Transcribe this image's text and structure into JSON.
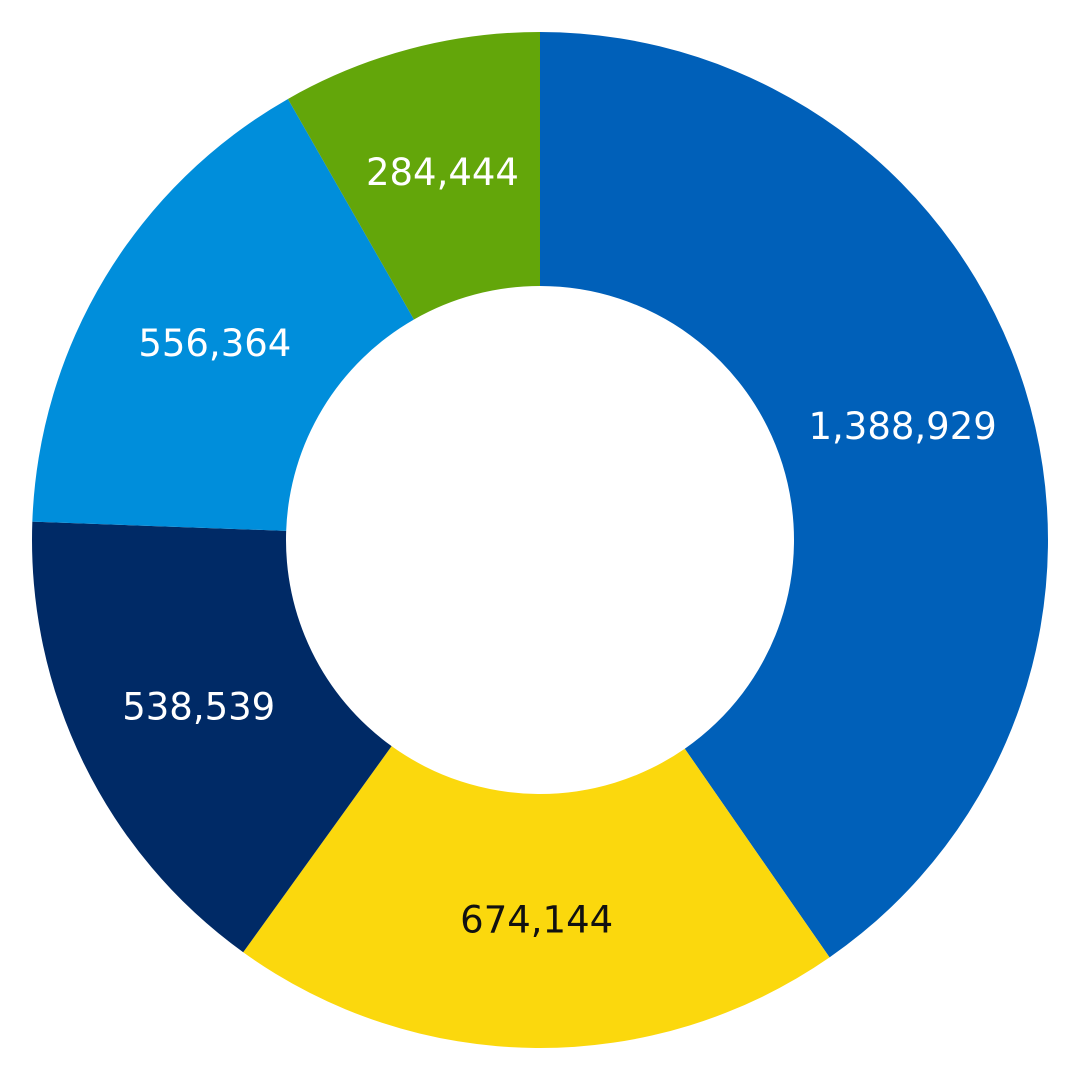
{
  "chart_data": {
    "type": "pie",
    "variant": "donut",
    "title": "",
    "legend": "none",
    "slices": [
      {
        "label": "1,388,929",
        "value": 1388929,
        "color": "#0060B9",
        "label_color": "#FFFFFF"
      },
      {
        "label": "674,144",
        "value": 674144,
        "color": "#FBD80D",
        "label_color": "#111111"
      },
      {
        "label": "538,539",
        "value": 538539,
        "color": "#002A66",
        "label_color": "#FFFFFF"
      },
      {
        "label": "556,364",
        "value": 556364,
        "color": "#008EDB",
        "label_color": "#FFFFFF"
      },
      {
        "label": "284,444",
        "value": 284444,
        "color": "#63A60A",
        "label_color": "#FFFFFF"
      }
    ]
  }
}
